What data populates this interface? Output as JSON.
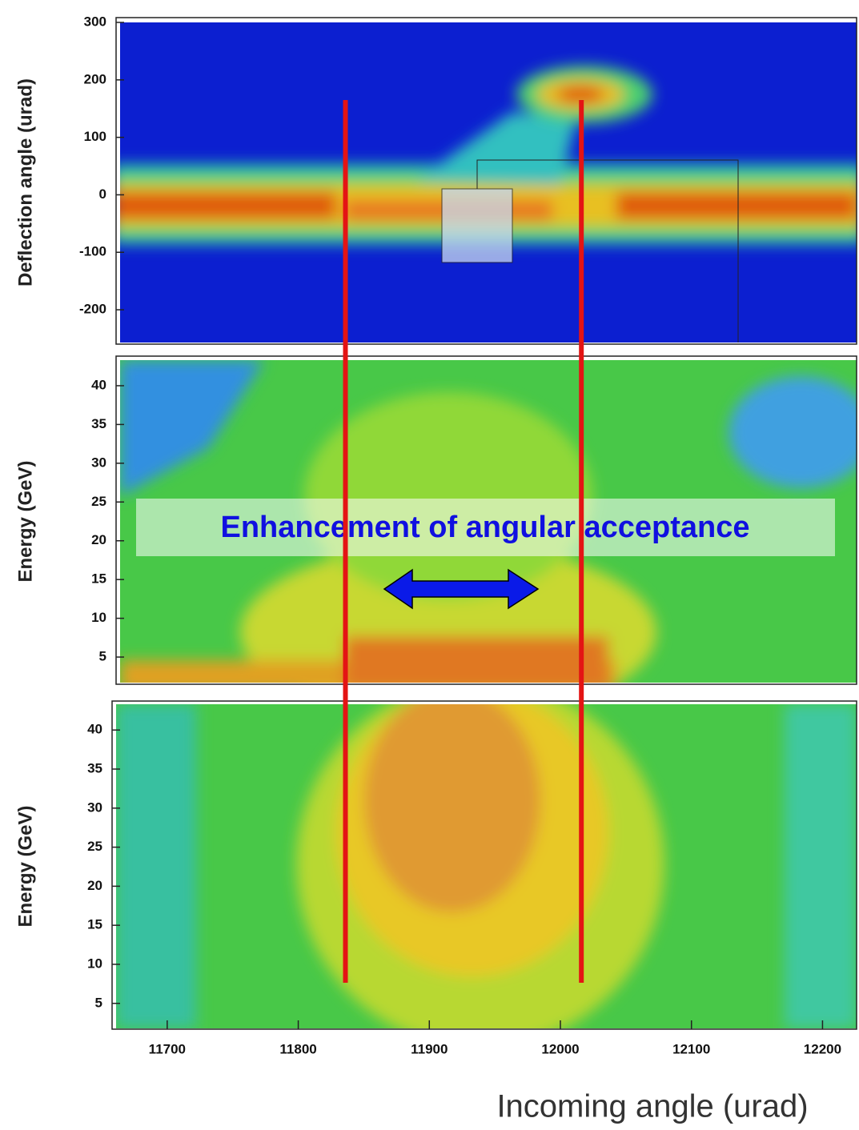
{
  "chart_data": [
    {
      "type": "heatmap",
      "ylabel": "Deflection angle (urad)",
      "ylim": [
        -257,
        300
      ],
      "yticks": [
        300,
        200,
        100,
        0,
        -100,
        -200
      ]
    },
    {
      "type": "heatmap",
      "ylabel": "Energy (GeV)",
      "ylim": [
        1.7,
        43.3
      ],
      "yticks": [
        40,
        35,
        30,
        25,
        20,
        15,
        10,
        5
      ],
      "annotation": "Enhancement of angular acceptance"
    },
    {
      "type": "heatmap",
      "ylabel": "Energy (GeV)",
      "ylim": [
        1.8,
        43.3
      ],
      "yticks": [
        40,
        35,
        30,
        25,
        20,
        15,
        10,
        5
      ],
      "xlim": [
        11661,
        12226
      ],
      "xticks": [
        11700,
        11800,
        11900,
        12000,
        12100,
        12200
      ],
      "xlabel": "Incoming angle (urad)",
      "vlines": [
        11836,
        12016
      ],
      "vline_color": "#e41414"
    }
  ]
}
